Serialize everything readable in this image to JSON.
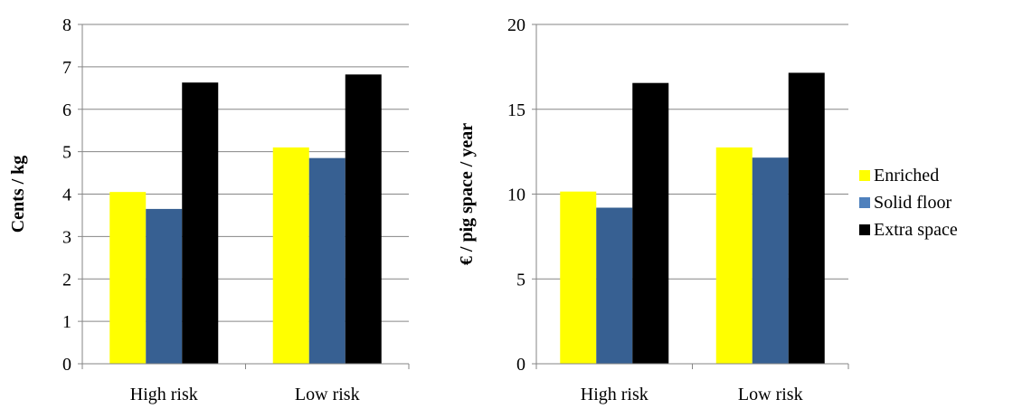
{
  "chart_data": [
    {
      "type": "bar",
      "categories": [
        "High risk",
        "Low risk"
      ],
      "ylabel": "Cents / kg",
      "ylim": [
        0,
        8
      ],
      "yticks": [
        0,
        1,
        2,
        3,
        4,
        5,
        6,
        7,
        8
      ],
      "grid": true,
      "series": [
        {
          "name": "Enriched",
          "values": [
            4.05,
            5.1
          ]
        },
        {
          "name": "Solid floor",
          "values": [
            3.65,
            4.85
          ]
        },
        {
          "name": "Extra space",
          "values": [
            6.63,
            6.82
          ]
        }
      ]
    },
    {
      "type": "bar",
      "categories": [
        "High risk",
        "Low risk"
      ],
      "ylabel": "€ / pig space / year",
      "ylim": [
        0,
        20
      ],
      "yticks": [
        0,
        5,
        10,
        15,
        20
      ],
      "grid": true,
      "series": [
        {
          "name": "Enriched",
          "values": [
            10.15,
            12.75
          ]
        },
        {
          "name": "Solid floor",
          "values": [
            9.2,
            12.15
          ]
        },
        {
          "name": "Extra space",
          "values": [
            16.55,
            17.15
          ]
        }
      ]
    }
  ],
  "legend": {
    "placement": "right",
    "items": [
      {
        "label": "Enriched",
        "color": "#FFFF00"
      },
      {
        "label": "Solid floor",
        "color": "#4F81BD"
      },
      {
        "label": "Extra space",
        "color": "#000000"
      }
    ]
  },
  "series_colors": [
    "#FFFF00",
    "#376092",
    "#000000"
  ]
}
